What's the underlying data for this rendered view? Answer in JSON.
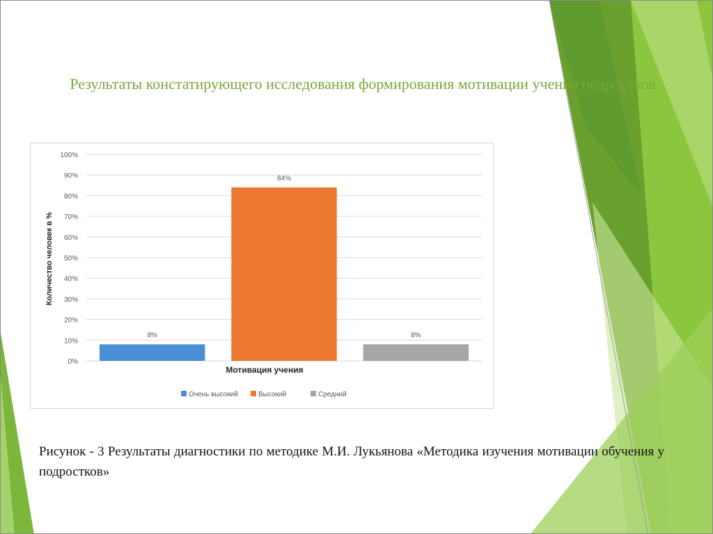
{
  "slide": {
    "title": "Результаты констатирующего исследования формирования мотивации учения подростков",
    "caption": "Рисунок - 3 Результаты диагностики по методике М.И. Лукьянова «Методика изучения мотивации обучения у подростков»",
    "accent_color": "#7aa63c"
  },
  "chart_data": {
    "type": "bar",
    "categories": [
      "Мотивация учения"
    ],
    "series": [
      {
        "name": "Очень высокий",
        "values": [
          8
        ],
        "color": "#4a8fd3",
        "label": "8%"
      },
      {
        "name": "Высокий",
        "values": [
          84
        ],
        "color": "#ee7a32",
        "label": "84%"
      },
      {
        "name": "Средний",
        "values": [
          8
        ],
        "color": "#a6a6a6",
        "label": "8%"
      }
    ],
    "xlabel": "Мотивация учения",
    "ylabel": "Количество человек в %",
    "ylim": [
      0,
      100
    ],
    "ytick_labels": [
      "0%",
      "10%",
      "20%",
      "30%",
      "40%",
      "50%",
      "60%",
      "70%",
      "80%",
      "90%",
      "100%"
    ],
    "grid": true,
    "legend_position": "bottom"
  }
}
